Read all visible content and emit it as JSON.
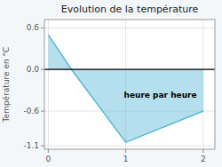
{
  "chart_data": {
    "type": "area",
    "title": "Evolution de la température",
    "xlabel": "heure par heure",
    "ylabel": "Température en °C",
    "x": [
      0,
      0.3,
      1.0,
      2.0
    ],
    "values": [
      0.5,
      0.0,
      -1.05,
      -0.6
    ],
    "color": "#5ab8d4",
    "xlim": [
      -0.05,
      2.15
    ],
    "ylim": [
      -1.15,
      0.72
    ],
    "xticks": [
      0,
      1,
      2
    ],
    "yticks": [
      0.6,
      {
        "value": 0,
        "label": "0.0"
      },
      -0.6,
      -1.1
    ],
    "grid": true
  }
}
